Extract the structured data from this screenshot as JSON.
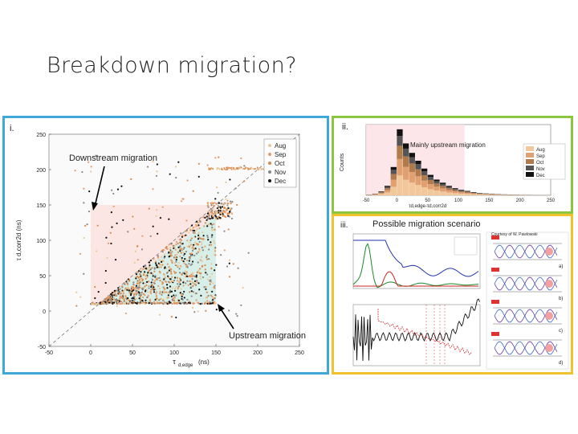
{
  "slide_title": "Breakdown migration?",
  "panels": {
    "i": {
      "label": "i.",
      "annot_down": "Downstream migration",
      "annot_up": "Upstream migration",
      "xlabel": "τ",
      "xlabel_sub": "d,edge",
      "xlabel_unit": "(ns)",
      "ylabel": "τ",
      "ylabel_sub": "d,corr2d",
      "ylabel_unit": "(ns)"
    },
    "ii": {
      "label": "ii.",
      "annot": "Mainly upstream migration",
      "ylabel": "Counts",
      "xlabel": "τd,edge-τd,corr2d"
    },
    "iii": {
      "label": "iii.",
      "annot": "Possible migration scenario",
      "courtesy": "Courtesy of W. Pawlowski",
      "sub_labels": [
        "a)",
        "b)",
        "c)",
        "d)"
      ]
    }
  },
  "chart_data": [
    {
      "type": "scatter",
      "panel": "i",
      "xlim": [
        -50,
        250
      ],
      "ylim": [
        -50,
        250
      ],
      "x_ticks": [
        "-50",
        "0",
        "50",
        "100",
        "150",
        "200",
        "250"
      ],
      "y_ticks": [
        "-50",
        "0",
        "50",
        "100",
        "150",
        "200",
        "250"
      ],
      "legend": [
        "Aug",
        "Sep",
        "Oct",
        "Nov",
        "Dec"
      ],
      "legend_position": "top-right",
      "series_colors": [
        "#e8c898",
        "#e89a6a",
        "#d98a4a",
        "#888888",
        "#111111"
      ],
      "reference_line": "y = x",
      "density_regions": [
        {
          "name": "main-wedge",
          "x": [
            0,
            150
          ],
          "y": [
            10,
            150
          ],
          "shape": "y<x"
        },
        {
          "name": "baseline",
          "x": [
            0,
            150
          ],
          "y": [
            10,
            12
          ]
        }
      ]
    },
    {
      "type": "bar",
      "panel": "ii",
      "xlim": [
        -50,
        250
      ],
      "x_ticks": [
        "-50",
        "0",
        "50",
        "100",
        "150",
        "200",
        "250"
      ],
      "y_ticks": [
        "0",
        "50",
        "100",
        "150",
        "200",
        "250",
        "300",
        "350",
        "400"
      ],
      "legend": [
        "Aug",
        "Sep",
        "Oct",
        "Nov",
        "Dec"
      ],
      "legend_position": "right",
      "stacked": true,
      "bins_center": [
        -45,
        -35,
        -25,
        -15,
        -5,
        5,
        15,
        25,
        35,
        45,
        55,
        65,
        75,
        85,
        95,
        105,
        115,
        125,
        135,
        145,
        155,
        165,
        175,
        185,
        195,
        205,
        215,
        225,
        235,
        245
      ],
      "totals": [
        5,
        10,
        25,
        60,
        180,
        420,
        330,
        270,
        220,
        170,
        130,
        100,
        80,
        60,
        45,
        35,
        28,
        20,
        15,
        12,
        10,
        8,
        6,
        5,
        4,
        3,
        3,
        2,
        2,
        1
      ]
    }
  ]
}
